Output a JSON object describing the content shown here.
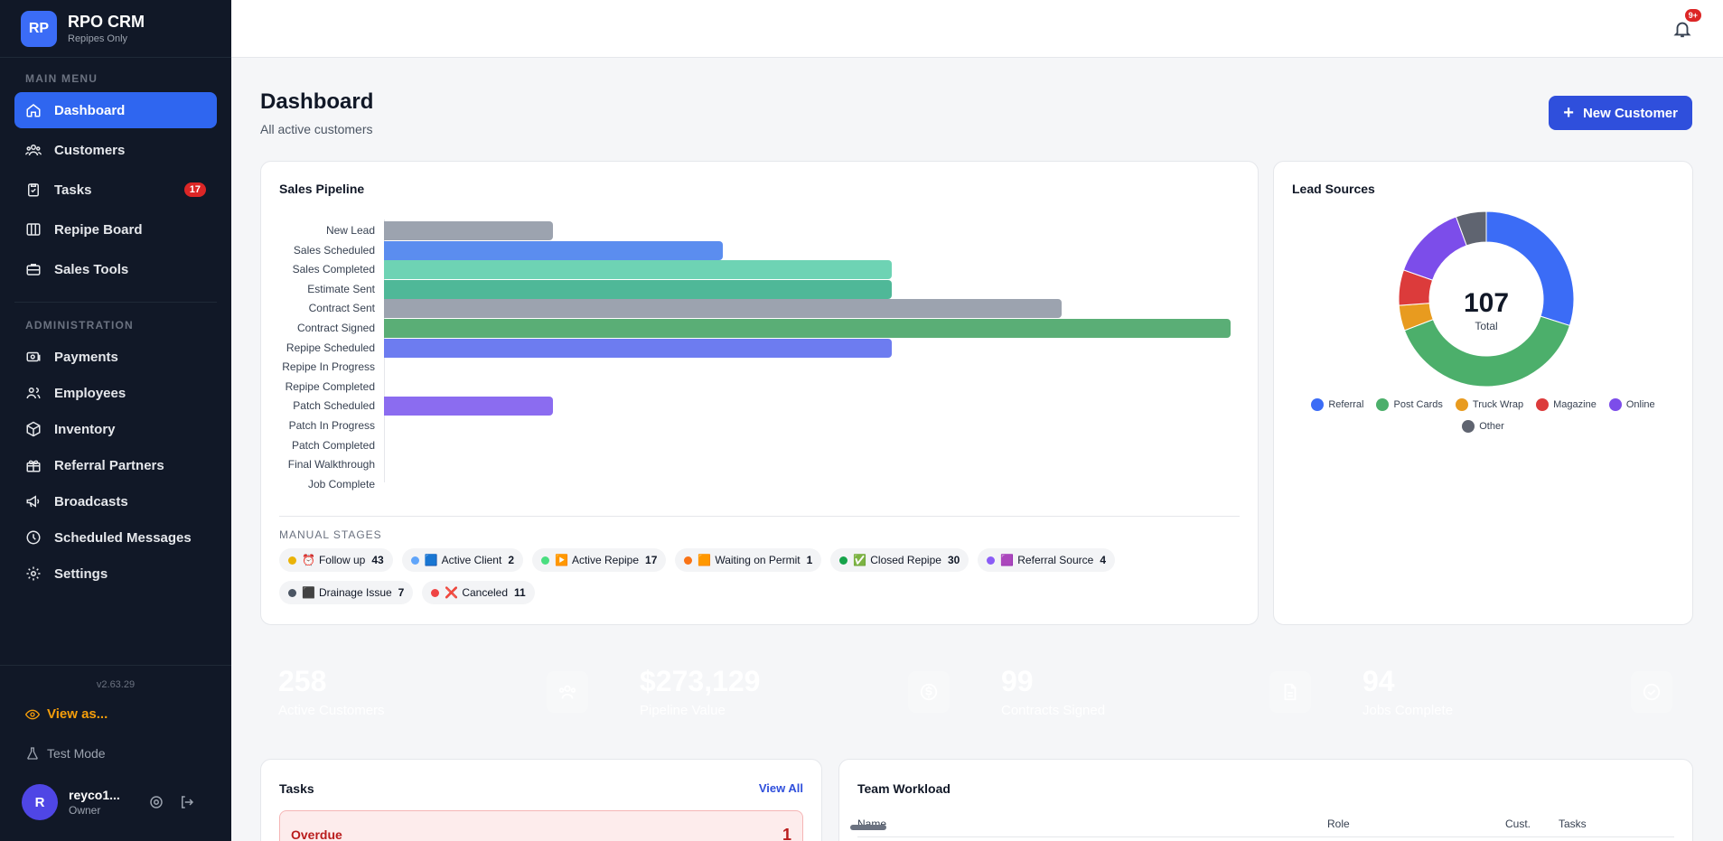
{
  "brand": {
    "logo": "RP",
    "name": "RPO CRM",
    "sub": "Repipes Only"
  },
  "sidebar": {
    "main_label": "MAIN MENU",
    "main_items": [
      {
        "label": "Dashboard",
        "icon": "home-icon",
        "active": true
      },
      {
        "label": "Customers",
        "icon": "users-icon"
      },
      {
        "label": "Tasks",
        "icon": "clipboard-icon",
        "badge": "17"
      },
      {
        "label": "Repipe Board",
        "icon": "board-icon"
      },
      {
        "label": "Sales Tools",
        "icon": "briefcase-icon"
      }
    ],
    "admin_label": "ADMINISTRATION",
    "admin_items": [
      {
        "label": "Payments",
        "icon": "payments-icon"
      },
      {
        "label": "Employees",
        "icon": "employees-icon"
      },
      {
        "label": "Inventory",
        "icon": "box-icon"
      },
      {
        "label": "Referral Partners",
        "icon": "gift-icon"
      },
      {
        "label": "Broadcasts",
        "icon": "megaphone-icon"
      },
      {
        "label": "Scheduled Messages",
        "icon": "clock-icon"
      },
      {
        "label": "Settings",
        "icon": "gear-icon"
      }
    ],
    "version": "v2.63.29",
    "view_as": "View as...",
    "test_mode": "Test Mode",
    "user": {
      "initial": "R",
      "name": "reyco1...",
      "role": "Owner"
    }
  },
  "topbar": {
    "notif_badge": "9+"
  },
  "header": {
    "title": "Dashboard",
    "subtitle": "All active customers",
    "new_button": "New Customer"
  },
  "pipeline": {
    "title": "Sales Pipeline",
    "manual_label": "MANUAL STAGES",
    "manual_stages": [
      {
        "label": "Follow up",
        "emoji": "⏰",
        "count": "43",
        "color": "#eab308"
      },
      {
        "label": "Active Client",
        "emoji": "🟦",
        "count": "2",
        "color": "#60a5fa"
      },
      {
        "label": "Active Repipe",
        "emoji": "▶️",
        "count": "17",
        "color": "#4ade80"
      },
      {
        "label": "Waiting on Permit",
        "emoji": "🟧",
        "count": "1",
        "color": "#f97316"
      },
      {
        "label": "Closed Repipe",
        "emoji": "✅",
        "count": "30",
        "color": "#16a34a"
      },
      {
        "label": "Referral Source",
        "emoji": "🟪",
        "count": "4",
        "color": "#8b5cf6"
      },
      {
        "label": "Drainage Issue",
        "emoji": "⬛",
        "count": "7",
        "color": "#4b5563"
      },
      {
        "label": "Canceled",
        "emoji": "❌",
        "count": "11",
        "color": "#ef4444"
      }
    ]
  },
  "chart_data": [
    {
      "type": "bar",
      "orientation": "horizontal",
      "title": "Sales Pipeline",
      "categories": [
        "New Lead",
        "Sales Scheduled",
        "Sales Completed",
        "Estimate Sent",
        "Contract Sent",
        "Contract Signed",
        "Repipe Scheduled",
        "Repipe In Progress",
        "Repipe Completed",
        "Patch Scheduled",
        "Patch In Progress",
        "Patch Completed",
        "Final Walkthrough",
        "Job Complete"
      ],
      "values": [
        1,
        2,
        3,
        3,
        4,
        5,
        3,
        0,
        0,
        1,
        0,
        0,
        0,
        0
      ],
      "xlim": [
        0,
        5
      ],
      "colors": [
        "#9ca3af",
        "#5b8def",
        "#6ed3b4",
        "#4fb898",
        "#9ca3af",
        "#5aae76",
        "#6d7cf0",
        "#9ca3af",
        "#9ca3af",
        "#8b6cf0",
        "#9ca3af",
        "#9ca3af",
        "#9ca3af",
        "#9ca3af"
      ]
    },
    {
      "type": "pie",
      "title": "Lead Sources",
      "center_value": "107",
      "center_label": "Total",
      "series": [
        {
          "name": "Referral",
          "value": 32,
          "color": "#3b6cf6"
        },
        {
          "name": "Post Cards",
          "value": 42,
          "color": "#4caf6b"
        },
        {
          "name": "Truck Wrap",
          "value": 5,
          "color": "#e89b1f"
        },
        {
          "name": "Magazine",
          "value": 7,
          "color": "#dc3b3b"
        },
        {
          "name": "Online",
          "value": 15,
          "color": "#7c4dea"
        },
        {
          "name": "Other",
          "value": 6,
          "color": "#5f6470"
        }
      ]
    }
  ],
  "stats": [
    {
      "value": "258",
      "label": "Active Customers",
      "icon": "users-icon",
      "color": "#2f5ff5"
    },
    {
      "value": "$273,129",
      "label": "Pipeline Value",
      "icon": "dollar-icon",
      "color": "#48a83c"
    },
    {
      "value": "99",
      "label": "Contracts Signed",
      "icon": "document-icon",
      "color": "#8b2ff0"
    },
    {
      "value": "94",
      "label": "Jobs Complete",
      "icon": "check-circle-icon",
      "color": "#3e9a5d"
    }
  ],
  "tasks": {
    "title": "Tasks",
    "view_all": "View All",
    "overdue_label": "Overdue",
    "overdue_count": "1"
  },
  "workload": {
    "title": "Team Workload",
    "columns": [
      "Name",
      "Role",
      "Cust.",
      "Tasks"
    ]
  }
}
